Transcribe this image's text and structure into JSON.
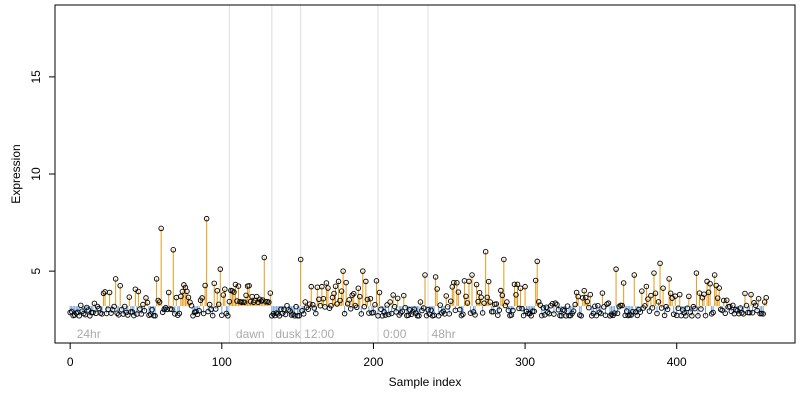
{
  "chart_data": {
    "type": "scatter",
    "title": "",
    "xlabel": "Sample index",
    "ylabel": "Expression",
    "xlim": [
      -10,
      478
    ],
    "ylim": [
      1.3,
      18.7
    ],
    "x_ticks": [
      0,
      100,
      200,
      300,
      400
    ],
    "y_ticks": [
      5,
      10,
      15
    ],
    "baseline": 3.2,
    "grid": false,
    "legend": "none",
    "series_count": 460,
    "group_boundaries": [
      105,
      133,
      152,
      203,
      236
    ],
    "group_labels": [
      {
        "label": "24hr",
        "x": 3
      },
      {
        "label": "dawn",
        "x": 108
      },
      {
        "label": "dusk",
        "x": 134
      },
      {
        "label": "12:00",
        "x": 153
      },
      {
        "label": "0:00",
        "x": 205
      },
      {
        "label": "48hr",
        "x": 237
      }
    ],
    "peaks": [
      {
        "x": 30,
        "y": 4.6
      },
      {
        "x": 57,
        "y": 4.6
      },
      {
        "x": 60,
        "y": 7.2
      },
      {
        "x": 68,
        "y": 6.1
      },
      {
        "x": 90,
        "y": 7.7
      },
      {
        "x": 99,
        "y": 5.1
      },
      {
        "x": 128,
        "y": 5.7
      },
      {
        "x": 152,
        "y": 5.6
      },
      {
        "x": 180,
        "y": 5.0
      },
      {
        "x": 193,
        "y": 5.0
      },
      {
        "x": 202,
        "y": 4.5
      },
      {
        "x": 234,
        "y": 4.8
      },
      {
        "x": 241,
        "y": 4.7
      },
      {
        "x": 260,
        "y": 4.5
      },
      {
        "x": 265,
        "y": 4.8
      },
      {
        "x": 274,
        "y": 6.0
      },
      {
        "x": 286,
        "y": 5.6
      },
      {
        "x": 308,
        "y": 5.5
      },
      {
        "x": 360,
        "y": 5.1
      },
      {
        "x": 372,
        "y": 4.8
      },
      {
        "x": 385,
        "y": 4.9
      },
      {
        "x": 389,
        "y": 5.4
      },
      {
        "x": 395,
        "y": 4.6
      },
      {
        "x": 413,
        "y": 4.9
      },
      {
        "x": 425,
        "y": 4.8
      }
    ],
    "ranges": [
      {
        "from": 0,
        "to": 14,
        "low": 2.7,
        "high": 3.4
      },
      {
        "from": 15,
        "to": 28,
        "low": 2.8,
        "high": 4.0
      },
      {
        "from": 29,
        "to": 56,
        "low": 2.7,
        "high": 4.3
      },
      {
        "from": 57,
        "to": 104,
        "low": 2.7,
        "high": 4.4
      },
      {
        "from": 105,
        "to": 132,
        "low": 3.4,
        "high": 4.6
      },
      {
        "from": 133,
        "to": 151,
        "low": 2.7,
        "high": 3.3
      },
      {
        "from": 152,
        "to": 202,
        "low": 2.8,
        "high": 4.5
      },
      {
        "from": 203,
        "to": 235,
        "low": 2.7,
        "high": 4.0
      },
      {
        "from": 236,
        "to": 320,
        "low": 2.7,
        "high": 4.6
      },
      {
        "from": 321,
        "to": 360,
        "low": 2.7,
        "high": 4.0
      },
      {
        "from": 361,
        "to": 430,
        "low": 2.7,
        "high": 4.6
      },
      {
        "from": 431,
        "to": 460,
        "low": 2.8,
        "high": 3.9
      }
    ],
    "colors": {
      "above_baseline": "#e69a17",
      "below_baseline": "#6fa0d8",
      "point_stroke": "#000000",
      "group_line": "#dddddd",
      "group_label": "#aaaaaa",
      "axis": "#000000"
    }
  }
}
